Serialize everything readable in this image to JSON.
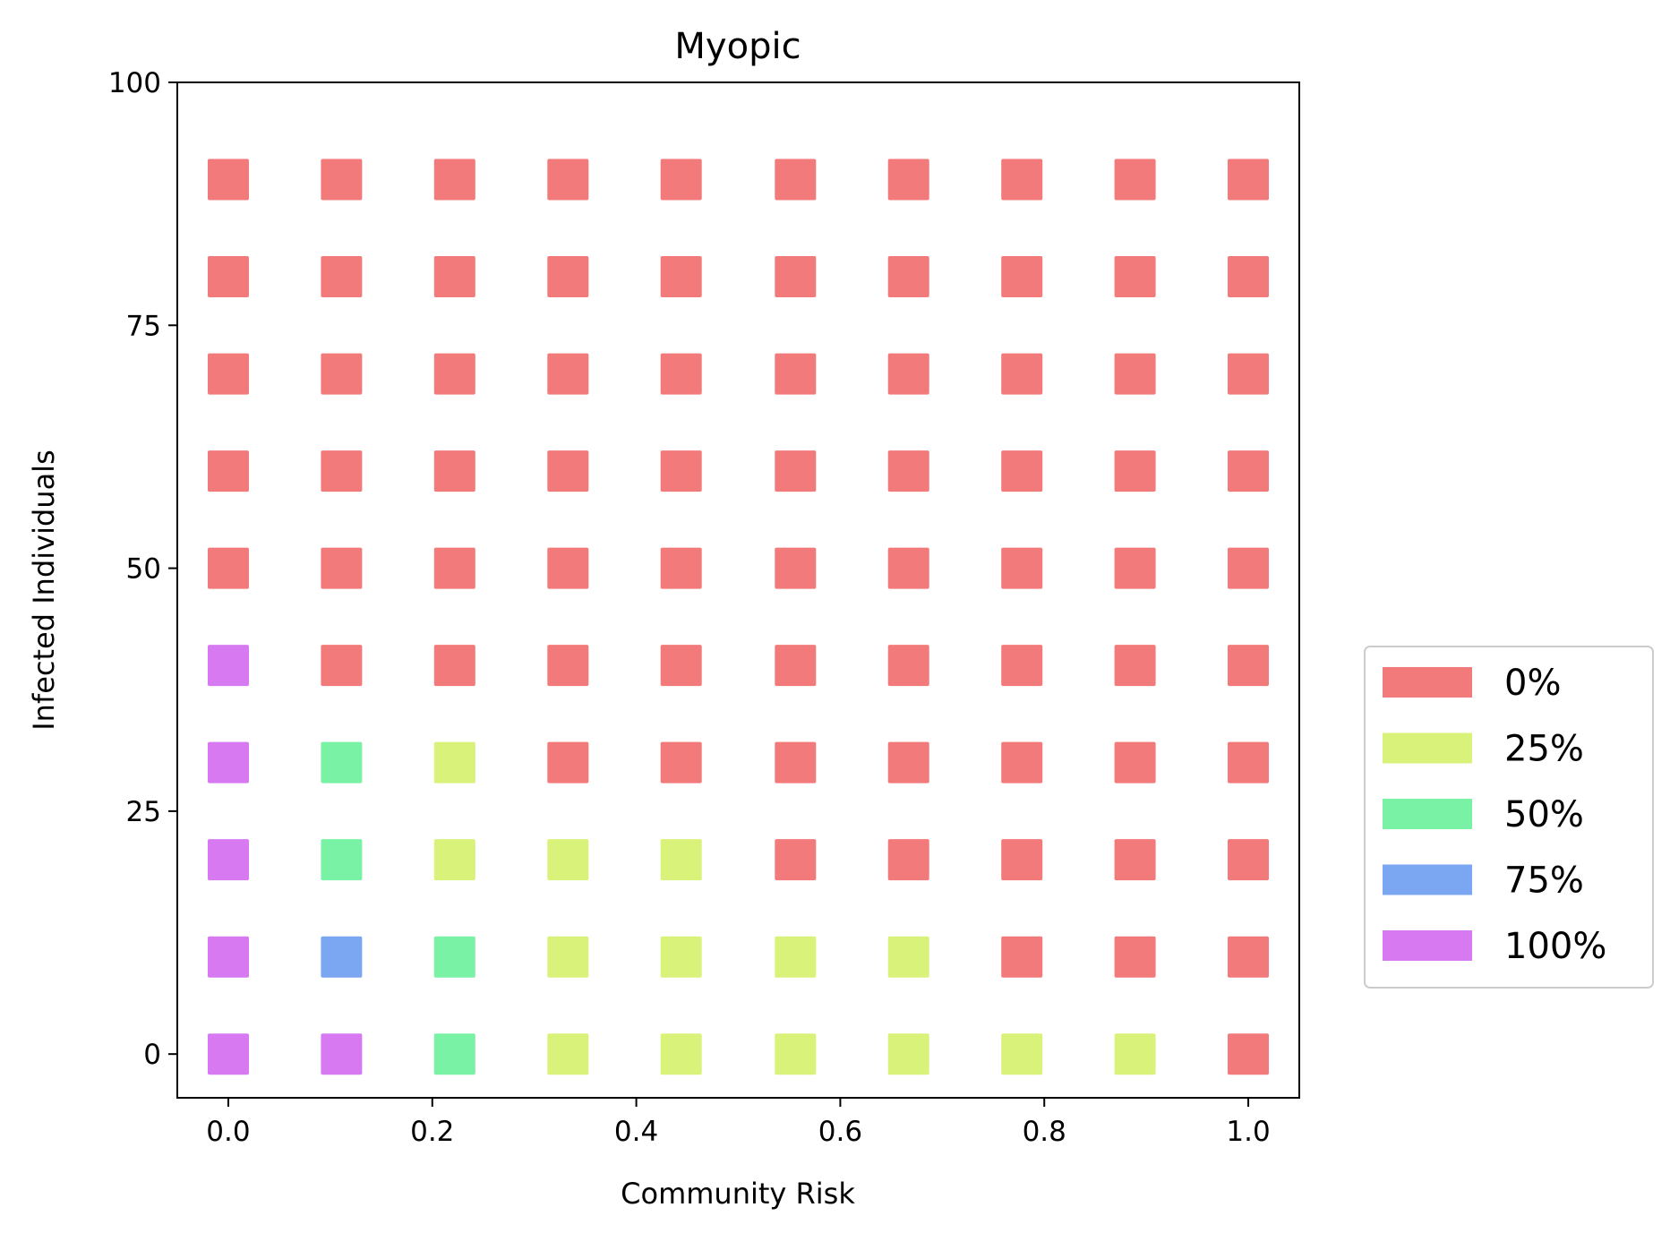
{
  "chart_data": {
    "type": "scatter",
    "title": "Myopic",
    "xlabel": "Community Risk",
    "ylabel": "Infected Individuals",
    "xlim": [
      -0.05,
      1.05
    ],
    "ylim": [
      -4.5,
      100
    ],
    "xticks": [
      0.0,
      0.2,
      0.4,
      0.6,
      0.8,
      1.0
    ],
    "xtick_labels": [
      "0.0",
      "0.2",
      "0.4",
      "0.6",
      "0.8",
      "1.0"
    ],
    "yticks": [
      0,
      25,
      50,
      75,
      100
    ],
    "ytick_labels": [
      "0",
      "25",
      "50",
      "75",
      "100"
    ],
    "grid": false,
    "marker": "square",
    "legend": {
      "placement": "outside-right",
      "entries": [
        {
          "label": "0%",
          "color": "#f27a7a"
        },
        {
          "label": "25%",
          "color": "#d9f27a"
        },
        {
          "label": "50%",
          "color": "#7af2a6"
        },
        {
          "label": "75%",
          "color": "#7aa6f2"
        },
        {
          "label": "100%",
          "color": "#d77af2"
        }
      ]
    },
    "x": [
      0.0,
      0.111,
      0.222,
      0.333,
      0.444,
      0.556,
      0.667,
      0.778,
      0.889,
      1.0
    ],
    "y": [
      0,
      10,
      20,
      30,
      40,
      50,
      60,
      70,
      80,
      90
    ],
    "cells": [
      [
        100,
        100,
        50,
        25,
        25,
        25,
        25,
        25,
        25,
        0
      ],
      [
        100,
        75,
        50,
        25,
        25,
        25,
        25,
        0,
        0,
        0
      ],
      [
        100,
        50,
        25,
        25,
        25,
        0,
        0,
        0,
        0,
        0
      ],
      [
        100,
        50,
        25,
        0,
        0,
        0,
        0,
        0,
        0,
        0
      ],
      [
        100,
        0,
        0,
        0,
        0,
        0,
        0,
        0,
        0,
        0
      ],
      [
        0,
        0,
        0,
        0,
        0,
        0,
        0,
        0,
        0,
        0
      ],
      [
        0,
        0,
        0,
        0,
        0,
        0,
        0,
        0,
        0,
        0
      ],
      [
        0,
        0,
        0,
        0,
        0,
        0,
        0,
        0,
        0,
        0
      ],
      [
        0,
        0,
        0,
        0,
        0,
        0,
        0,
        0,
        0,
        0
      ],
      [
        0,
        0,
        0,
        0,
        0,
        0,
        0,
        0,
        0,
        0
      ]
    ],
    "cells_note_orientation": "rows indexed by y (low to high), columns by x"
  }
}
